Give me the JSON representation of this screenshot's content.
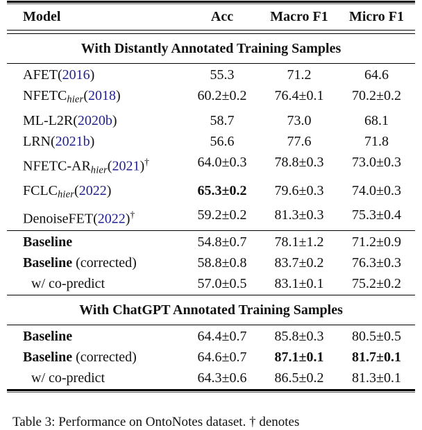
{
  "colors": {
    "citation": "#1f1f8f",
    "rule": "#000000"
  },
  "header": {
    "columns": [
      "Model",
      "Acc",
      "Macro F1",
      "Micro F1"
    ]
  },
  "sections": [
    {
      "title": "With Distantly Annotated Training Samples",
      "groups": [
        {
          "rows": [
            {
              "name": "AFET",
              "name_bold": false,
              "sub": "",
              "year": "2016",
              "dagger": false,
              "suffix": "",
              "indent": false,
              "cells": [
                {
                  "text": "55.3",
                  "bold": false
                },
                {
                  "text": "71.2",
                  "bold": false
                },
                {
                  "text": "64.6",
                  "bold": false
                }
              ]
            },
            {
              "name": "NFETC",
              "name_bold": false,
              "sub": "hier",
              "year": "2018",
              "dagger": false,
              "suffix": "",
              "indent": false,
              "cells": [
                {
                  "text": "60.2±0.2",
                  "bold": false
                },
                {
                  "text": "76.4±0.1",
                  "bold": false
                },
                {
                  "text": "70.2±0.2",
                  "bold": false
                }
              ]
            },
            {
              "name": "ML-L2R",
              "name_bold": false,
              "sub": "",
              "year": "2020b",
              "dagger": false,
              "suffix": "",
              "indent": false,
              "cells": [
                {
                  "text": "58.7",
                  "bold": false
                },
                {
                  "text": "73.0",
                  "bold": false
                },
                {
                  "text": "68.1",
                  "bold": false
                }
              ]
            },
            {
              "name": "LRN",
              "name_bold": false,
              "sub": "",
              "year": "2021b",
              "dagger": false,
              "suffix": "",
              "indent": false,
              "cells": [
                {
                  "text": "56.6",
                  "bold": false
                },
                {
                  "text": "77.6",
                  "bold": false
                },
                {
                  "text": "71.8",
                  "bold": false
                }
              ]
            },
            {
              "name": "NFETC-AR",
              "name_bold": false,
              "sub": "hier",
              "year": "2021",
              "dagger": true,
              "suffix": "",
              "indent": false,
              "cells": [
                {
                  "text": "64.0±0.3",
                  "bold": false
                },
                {
                  "text": "78.8±0.3",
                  "bold": false
                },
                {
                  "text": "73.0±0.3",
                  "bold": false
                }
              ]
            },
            {
              "name": "FCLC",
              "name_bold": false,
              "sub": "hier",
              "year": "2022",
              "dagger": false,
              "suffix": "",
              "indent": false,
              "cells": [
                {
                  "text": "65.3±0.2",
                  "bold": true
                },
                {
                  "text": "79.6±0.3",
                  "bold": false
                },
                {
                  "text": "74.0±0.3",
                  "bold": false
                }
              ]
            },
            {
              "name": "DenoiseFET",
              "name_bold": false,
              "sub": "",
              "year": "2022",
              "dagger": true,
              "suffix": "",
              "indent": false,
              "cells": [
                {
                  "text": "59.2±0.2",
                  "bold": false
                },
                {
                  "text": "81.3±0.3",
                  "bold": false
                },
                {
                  "text": "75.3±0.4",
                  "bold": false
                }
              ]
            }
          ]
        },
        {
          "rows": [
            {
              "name": "Baseline",
              "name_bold": true,
              "sub": "",
              "year": "",
              "dagger": false,
              "suffix": "",
              "indent": false,
              "cells": [
                {
                  "text": "54.8±0.7",
                  "bold": false
                },
                {
                  "text": "78.1±1.2",
                  "bold": false
                },
                {
                  "text": "71.2±0.9",
                  "bold": false
                }
              ]
            },
            {
              "name": "Baseline",
              "name_bold": true,
              "sub": "",
              "year": "",
              "dagger": false,
              "suffix": " (corrected)",
              "indent": false,
              "cells": [
                {
                  "text": "58.8±0.8",
                  "bold": false
                },
                {
                  "text": "83.7±0.2",
                  "bold": false
                },
                {
                  "text": "76.3±0.3",
                  "bold": false
                }
              ]
            },
            {
              "name": "w/ co-predict",
              "name_bold": false,
              "sub": "",
              "year": "",
              "dagger": false,
              "suffix": "",
              "indent": true,
              "cells": [
                {
                  "text": "57.0±0.5",
                  "bold": false
                },
                {
                  "text": "83.1±0.1",
                  "bold": false
                },
                {
                  "text": "75.2±0.2",
                  "bold": false
                }
              ]
            }
          ]
        }
      ]
    },
    {
      "title": "With ChatGPT Annotated Training Samples",
      "groups": [
        {
          "rows": [
            {
              "name": "Baseline",
              "name_bold": true,
              "sub": "",
              "year": "",
              "dagger": false,
              "suffix": "",
              "indent": false,
              "cells": [
                {
                  "text": "64.4±0.7",
                  "bold": false
                },
                {
                  "text": "85.8±0.3",
                  "bold": false
                },
                {
                  "text": "80.5±0.5",
                  "bold": false
                }
              ]
            },
            {
              "name": "Baseline",
              "name_bold": true,
              "sub": "",
              "year": "",
              "dagger": false,
              "suffix": " (corrected)",
              "indent": false,
              "cells": [
                {
                  "text": "64.6±0.7",
                  "bold": false
                },
                {
                  "text": "87.1±0.1",
                  "bold": true
                },
                {
                  "text": "81.7±0.1",
                  "bold": true
                }
              ]
            },
            {
              "name": "w/ co-predict",
              "name_bold": false,
              "sub": "",
              "year": "",
              "dagger": false,
              "suffix": "",
              "indent": true,
              "cells": [
                {
                  "text": "64.3±0.6",
                  "bold": false
                },
                {
                  "text": "86.5±0.2",
                  "bold": false
                },
                {
                  "text": "81.3±0.1",
                  "bold": false
                }
              ]
            }
          ]
        }
      ]
    }
  ],
  "caption_partial": "Table 3: Performance on OntoNotes dataset. † denotes"
}
